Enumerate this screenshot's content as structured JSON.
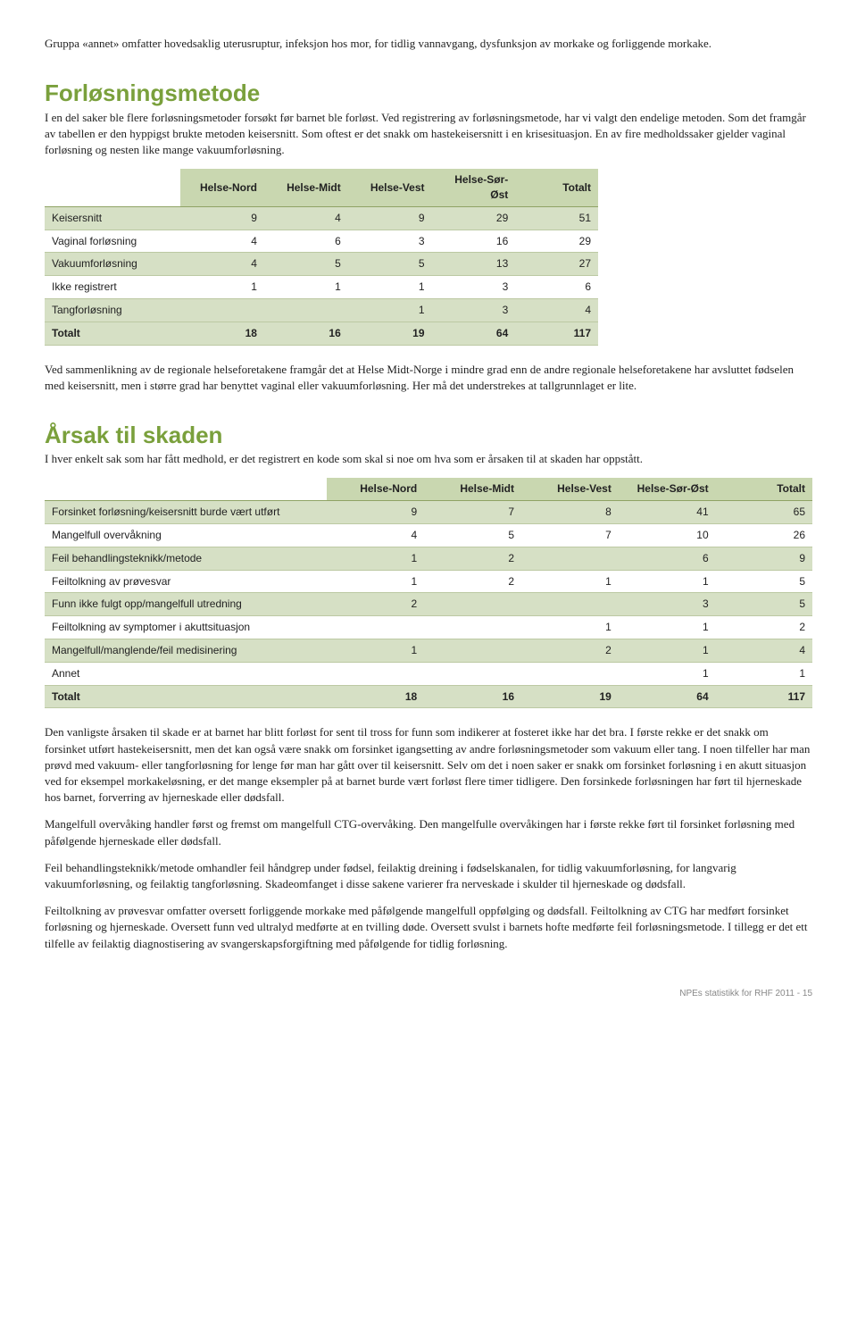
{
  "para1": "Gruppa «annet» omfatter hovedsaklig uterusruptur, infeksjon hos mor, for tidlig vannavgang, dysfunksjon av morkake og forliggende morkake.",
  "section1_title": "Forløsningsmetode",
  "section1_lead": "I en del saker ble flere forløsningsmetoder forsøkt før barnet ble forløst. Ved registrering av forløsningsmetode, har vi valgt den endelige metoden. Som det framgår av tabellen er den hyppigst brukte metoden keisersnitt. Som oftest er det snakk om hastekeisersnitt i en krisesituasjon. En av fire medholdssaker gjelder vaginal forløsning og nesten like mange vakuumforløsning.",
  "table1": {
    "columns": [
      "",
      "Helse-Nord",
      "Helse-Midt",
      "Helse-Vest",
      "Helse-Sør-Øst",
      "Totalt"
    ],
    "rows": [
      [
        "Keisersnitt",
        "9",
        "4",
        "9",
        "29",
        "51"
      ],
      [
        "Vaginal forløsning",
        "4",
        "6",
        "3",
        "16",
        "29"
      ],
      [
        "Vakuumforløsning",
        "4",
        "5",
        "5",
        "13",
        "27"
      ],
      [
        "Ikke registrert",
        "1",
        "1",
        "1",
        "3",
        "6"
      ],
      [
        "Tangforløsning",
        "",
        "",
        "1",
        "3",
        "4"
      ]
    ],
    "total": [
      "Totalt",
      "18",
      "16",
      "19",
      "64",
      "117"
    ]
  },
  "section1_after": "Ved sammenlikning av de regionale helseforetakene framgår det at Helse Midt-Norge i mindre grad enn de andre regionale helseforetakene har avsluttet fødselen med keisersnitt, men i større grad har benyttet vaginal eller vakuumforløsning. Her må det understrekes at tallgrunnlaget er lite.",
  "section2_title": "Årsak til skaden",
  "section2_lead": "I hver enkelt sak som har fått medhold, er det registrert en kode som skal si noe om hva som er årsaken til at skaden har oppstått.",
  "table2": {
    "columns": [
      "",
      "Helse-Nord",
      "Helse-Midt",
      "Helse-Vest",
      "Helse-Sør-Øst",
      "Totalt"
    ],
    "rows": [
      [
        "Forsinket forløsning/keisersnitt burde vært utført",
        "9",
        "7",
        "8",
        "41",
        "65"
      ],
      [
        "Mangelfull overvåkning",
        "4",
        "5",
        "7",
        "10",
        "26"
      ],
      [
        "Feil behandlingsteknikk/metode",
        "1",
        "2",
        "",
        "6",
        "9"
      ],
      [
        "Feiltolkning av prøvesvar",
        "1",
        "2",
        "1",
        "1",
        "5"
      ],
      [
        "Funn ikke fulgt opp/mangelfull utredning",
        "2",
        "",
        "",
        "3",
        "5"
      ],
      [
        "Feiltolkning av symptomer i akuttsituasjon",
        "",
        "",
        "1",
        "1",
        "2"
      ],
      [
        "Mangelfull/manglende/feil medisinering",
        "1",
        "",
        "2",
        "1",
        "4"
      ],
      [
        "Annet",
        "",
        "",
        "",
        "1",
        "1"
      ]
    ],
    "total": [
      "Totalt",
      "18",
      "16",
      "19",
      "64",
      "117"
    ]
  },
  "para_after_1": "Den vanligste årsaken til skade er at barnet har blitt forløst for sent til tross for funn som indikerer at fosteret ikke har det bra. I første rekke er det snakk om forsinket utført hastekeisersnitt, men det kan også være snakk om forsinket igangsetting av andre forløsningsmetoder som vakuum eller tang. I noen tilfeller har man prøvd med vakuum- eller tangforløsning for lenge før man har gått over til keisersnitt. Selv om det i noen saker er snakk om forsinket forløsning i en akutt situasjon ved for eksempel morkakeløsning, er det mange eksempler på at barnet burde vært forløst flere timer tidligere. Den forsinkede forløsningen har ført til hjerneskade hos barnet, forverring av hjerneskade eller dødsfall.",
  "para_after_2": "Mangelfull overvåking handler først og fremst om mangelfull CTG-overvåking. Den mangelfulle overvåkingen har i første rekke ført til forsinket forløsning med påfølgende hjerneskade eller dødsfall.",
  "para_after_3": "Feil behandlingsteknikk/metode omhandler feil håndgrep under fødsel, feilaktig dreining i fødselskanalen, for tidlig vakuumforløsning, for langvarig vakuumforløsning, og feilaktig tangforløsning. Skadeomfanget i disse sakene varierer fra nerveskade i skulder til hjerneskade og dødsfall.",
  "para_after_4": "Feiltolkning av prøvesvar omfatter oversett forliggende morkake med påfølgende mangelfull oppfølging og dødsfall. Feiltolkning av CTG har medført forsinket forløsning og hjerneskade. Oversett funn ved ultralyd medførte at en tvilling døde. Oversett svulst i barnets hofte medførte feil forløsningsmetode. I tillegg er det ett tilfelle av feilaktig diagnostisering av svangerskapsforgiftning med påfølgende for tidlig forløsning.",
  "footer": "NPEs statistikk for RHF 2011 - 15"
}
